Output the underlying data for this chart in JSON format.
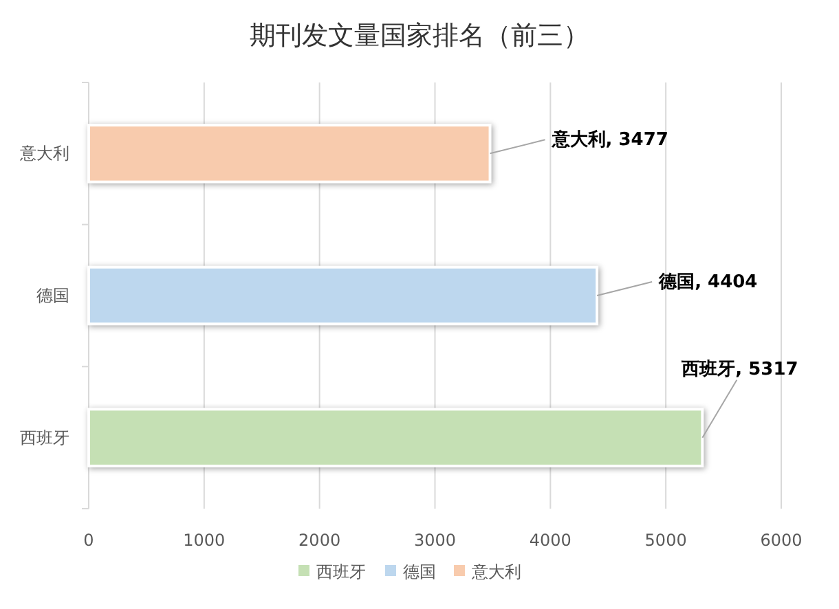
{
  "chart_data": {
    "type": "bar",
    "title": "期刊发文量国家排名（前三）",
    "orientation": "horizontal",
    "stacked": true,
    "categories": [
      "意大利",
      "德国",
      "西班牙"
    ],
    "series": [
      {
        "name": "西班牙",
        "color": "#c5e0b4",
        "values": [
          null,
          null,
          5317
        ],
        "value_labels": [
          null,
          null,
          "西班牙, 5317"
        ]
      },
      {
        "name": "德国",
        "color": "#bdd7ee",
        "values": [
          null,
          4404,
          null
        ],
        "value_labels": [
          null,
          "德国, 4404",
          null
        ]
      },
      {
        "name": "意大利",
        "color": "#f8cbad",
        "values": [
          3477,
          null,
          null
        ],
        "value_labels": [
          "意大利, 3477",
          null,
          null
        ]
      }
    ],
    "xlim": [
      0,
      6000
    ],
    "xticks": [
      0,
      1000,
      2000,
      3000,
      4000,
      5000,
      6000
    ],
    "grid": "x",
    "legend": "bottom"
  }
}
